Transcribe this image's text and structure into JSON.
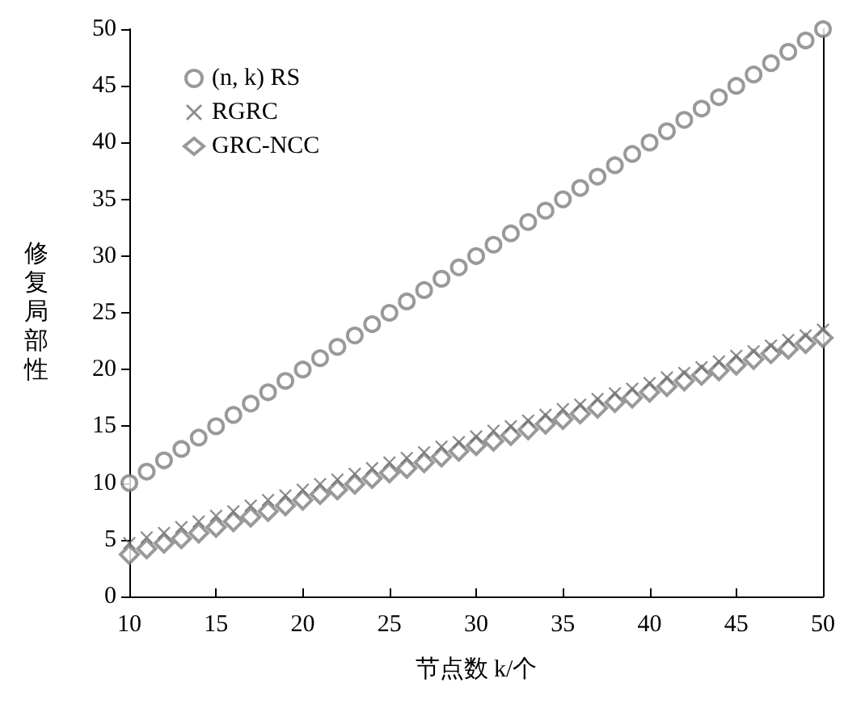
{
  "chart_data": {
    "type": "scatter",
    "xlabel": "节点数 k/个",
    "ylabel": "修复局部性",
    "x": [
      10,
      11,
      12,
      13,
      14,
      15,
      16,
      17,
      18,
      19,
      20,
      21,
      22,
      23,
      24,
      25,
      26,
      27,
      28,
      29,
      30,
      31,
      32,
      33,
      34,
      35,
      36,
      37,
      38,
      39,
      40,
      41,
      42,
      43,
      44,
      45,
      46,
      47,
      48,
      49,
      50
    ],
    "series": [
      {
        "name": "(n, k) RS",
        "color": "#808080",
        "marker": "circle",
        "values": [
          10,
          11,
          12,
          13,
          14,
          15,
          16,
          17,
          18,
          19,
          20,
          21,
          22,
          23,
          24,
          25,
          26,
          27,
          28,
          29,
          30,
          31,
          32,
          33,
          34,
          35,
          36,
          37,
          38,
          39,
          40,
          41,
          42,
          43,
          44,
          45,
          46,
          47,
          48,
          49,
          50
        ]
      },
      {
        "name": "RGRC",
        "color": "#707070",
        "marker": "cross",
        "values": [
          4.7,
          5.2,
          5.6,
          6.1,
          6.6,
          7.1,
          7.5,
          8.0,
          8.5,
          8.9,
          9.4,
          9.9,
          10.3,
          10.8,
          11.3,
          11.8,
          12.2,
          12.7,
          13.2,
          13.6,
          14.1,
          14.6,
          15.0,
          15.5,
          16.0,
          16.5,
          16.9,
          17.4,
          17.9,
          18.3,
          18.8,
          19.3,
          19.7,
          20.2,
          20.7,
          21.2,
          21.6,
          22.1,
          22.6,
          23.0,
          23.5
        ]
      },
      {
        "name": "GRC-NCC",
        "color": "#808080",
        "marker": "diamond",
        "values": [
          3.7,
          4.2,
          4.7,
          5.1,
          5.6,
          6.1,
          6.6,
          7.0,
          7.5,
          8.0,
          8.5,
          9.0,
          9.4,
          9.9,
          10.4,
          10.9,
          11.3,
          11.8,
          12.3,
          12.8,
          13.3,
          13.7,
          14.2,
          14.7,
          15.2,
          15.6,
          16.1,
          16.6,
          17.1,
          17.5,
          18.0,
          18.5,
          19.0,
          19.5,
          19.9,
          20.4,
          20.9,
          21.4,
          21.8,
          22.3,
          22.8
        ]
      }
    ],
    "xlim": [
      10,
      50
    ],
    "xticks": [
      10,
      15,
      20,
      25,
      30,
      35,
      40,
      45,
      50
    ],
    "ylim": [
      0,
      50
    ],
    "yticks": [
      0,
      5,
      10,
      15,
      20,
      25,
      30,
      35,
      40,
      45,
      50
    ],
    "grid": false,
    "legend": "top left"
  }
}
